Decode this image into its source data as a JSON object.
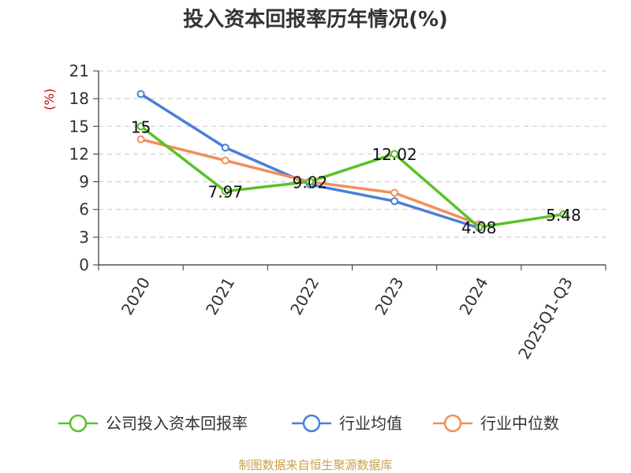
{
  "chart_data": {
    "type": "line",
    "title": "投入资本回报率历年情况(%)",
    "ylabel": "(%)",
    "categories": [
      "2020",
      "2021",
      "2022",
      "2023",
      "2024",
      "2025Q1-Q3"
    ],
    "yticks": [
      0,
      3,
      6,
      9,
      12,
      15,
      18,
      21
    ],
    "ylim": [
      0,
      21
    ],
    "grid": true,
    "legend_position": "bottom",
    "series": [
      {
        "name": "公司投入资本回报率",
        "color": "#5cc128",
        "values": [
          15,
          7.97,
          9.02,
          12.02,
          4.08,
          5.48
        ],
        "labels": [
          "15",
          "7.97",
          "9.02",
          "12.02",
          "4.08",
          "5.48"
        ]
      },
      {
        "name": "行业均值",
        "color": "#4a7fd9",
        "values": [
          18.5,
          12.7,
          8.7,
          6.9,
          4.0,
          null
        ]
      },
      {
        "name": "行业中位数",
        "color": "#f28e5c",
        "values": [
          13.6,
          11.3,
          9.0,
          7.8,
          4.4,
          null
        ]
      }
    ]
  },
  "source": "制图数据来自恒生聚源数据库"
}
